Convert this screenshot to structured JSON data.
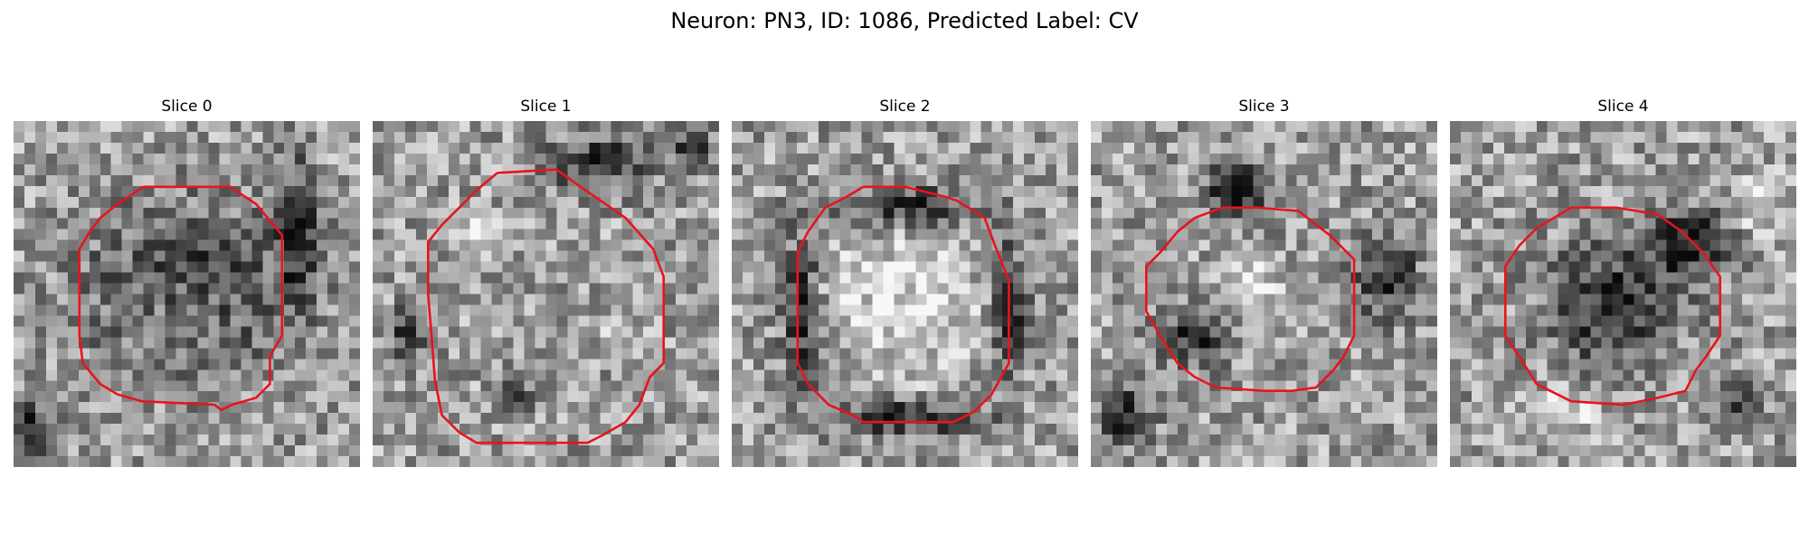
{
  "figure": {
    "title": "Neuron: PN3, ID: 1086, Predicted Label: CV"
  },
  "slices": [
    {
      "title": "Slice 0",
      "contour": [
        [
          0.375,
          0.19
        ],
        [
          0.625,
          0.19
        ],
        [
          0.7,
          0.24
        ],
        [
          0.775,
          0.33
        ],
        [
          0.775,
          0.62
        ],
        [
          0.74,
          0.68
        ],
        [
          0.74,
          0.76
        ],
        [
          0.7,
          0.8
        ],
        [
          0.63,
          0.82
        ],
        [
          0.6,
          0.835
        ],
        [
          0.58,
          0.82
        ],
        [
          0.37,
          0.81
        ],
        [
          0.3,
          0.79
        ],
        [
          0.25,
          0.76
        ],
        [
          0.2,
          0.7
        ],
        [
          0.19,
          0.62
        ],
        [
          0.19,
          0.37
        ],
        [
          0.22,
          0.32
        ],
        [
          0.25,
          0.28
        ],
        [
          0.3,
          0.24
        ],
        [
          0.375,
          0.19
        ]
      ],
      "dark": [
        [
          0.5,
          0.5,
          0.28,
          0.23
        ],
        [
          0.05,
          0.9,
          0.09,
          0.09
        ],
        [
          0.82,
          0.3,
          0.06,
          0.2
        ]
      ],
      "bright": [
        [
          0.48,
          0.55,
          0.17,
          0.14
        ]
      ]
    },
    {
      "title": "Slice 1",
      "contour": [
        [
          0.36,
          0.15
        ],
        [
          0.53,
          0.14
        ],
        [
          0.6,
          0.19
        ],
        [
          0.73,
          0.28
        ],
        [
          0.81,
          0.37
        ],
        [
          0.84,
          0.45
        ],
        [
          0.84,
          0.7
        ],
        [
          0.8,
          0.74
        ],
        [
          0.77,
          0.82
        ],
        [
          0.73,
          0.87
        ],
        [
          0.66,
          0.91
        ],
        [
          0.62,
          0.93
        ],
        [
          0.3,
          0.93
        ],
        [
          0.25,
          0.9
        ],
        [
          0.2,
          0.85
        ],
        [
          0.18,
          0.75
        ],
        [
          0.17,
          0.62
        ],
        [
          0.16,
          0.5
        ],
        [
          0.16,
          0.35
        ],
        [
          0.2,
          0.3
        ],
        [
          0.25,
          0.25
        ],
        [
          0.3,
          0.2
        ],
        [
          0.36,
          0.15
        ]
      ],
      "dark": [
        [
          0.65,
          0.12,
          0.14,
          0.08
        ],
        [
          0.92,
          0.08,
          0.06,
          0.06
        ],
        [
          0.1,
          0.62,
          0.05,
          0.07
        ],
        [
          0.42,
          0.8,
          0.05,
          0.05
        ]
      ],
      "bright": [
        [
          0.3,
          0.3,
          0.05,
          0.05
        ],
        [
          0.7,
          0.6,
          0.05,
          0.05
        ]
      ]
    },
    {
      "title": "Slice 2",
      "contour": [
        [
          0.38,
          0.19
        ],
        [
          0.5,
          0.19
        ],
        [
          0.62,
          0.22
        ],
        [
          0.65,
          0.23
        ],
        [
          0.73,
          0.28
        ],
        [
          0.76,
          0.36
        ],
        [
          0.8,
          0.46
        ],
        [
          0.8,
          0.7
        ],
        [
          0.75,
          0.79
        ],
        [
          0.7,
          0.84
        ],
        [
          0.64,
          0.87
        ],
        [
          0.6,
          0.87
        ],
        [
          0.38,
          0.87
        ],
        [
          0.35,
          0.85
        ],
        [
          0.28,
          0.82
        ],
        [
          0.22,
          0.76
        ],
        [
          0.19,
          0.7
        ],
        [
          0.19,
          0.38
        ],
        [
          0.22,
          0.32
        ],
        [
          0.27,
          0.25
        ],
        [
          0.33,
          0.22
        ],
        [
          0.38,
          0.19
        ]
      ],
      "dark": [
        [
          0.5,
          0.86,
          0.22,
          0.05
        ],
        [
          0.2,
          0.55,
          0.05,
          0.22
        ],
        [
          0.8,
          0.55,
          0.05,
          0.2
        ],
        [
          0.5,
          0.25,
          0.2,
          0.06
        ]
      ],
      "bright": [
        [
          0.5,
          0.52,
          0.2,
          0.2
        ]
      ]
    },
    {
      "title": "Slice 3",
      "contour": [
        [
          0.38,
          0.25
        ],
        [
          0.48,
          0.25
        ],
        [
          0.6,
          0.26
        ],
        [
          0.65,
          0.3
        ],
        [
          0.69,
          0.33
        ],
        [
          0.72,
          0.36
        ],
        [
          0.76,
          0.4
        ],
        [
          0.76,
          0.62
        ],
        [
          0.73,
          0.68
        ],
        [
          0.7,
          0.72
        ],
        [
          0.65,
          0.77
        ],
        [
          0.58,
          0.78
        ],
        [
          0.5,
          0.78
        ],
        [
          0.36,
          0.77
        ],
        [
          0.3,
          0.74
        ],
        [
          0.25,
          0.7
        ],
        [
          0.2,
          0.62
        ],
        [
          0.16,
          0.55
        ],
        [
          0.16,
          0.42
        ],
        [
          0.2,
          0.38
        ],
        [
          0.25,
          0.32
        ],
        [
          0.3,
          0.28
        ],
        [
          0.38,
          0.25
        ]
      ],
      "dark": [
        [
          0.3,
          0.62,
          0.1,
          0.09
        ],
        [
          0.42,
          0.2,
          0.1,
          0.08
        ],
        [
          0.85,
          0.45,
          0.09,
          0.12
        ],
        [
          0.1,
          0.85,
          0.08,
          0.08
        ]
      ],
      "bright": [
        [
          0.45,
          0.48,
          0.1,
          0.1
        ]
      ]
    },
    {
      "title": "Slice 4",
      "contour": [
        [
          0.35,
          0.25
        ],
        [
          0.48,
          0.25
        ],
        [
          0.6,
          0.27
        ],
        [
          0.67,
          0.32
        ],
        [
          0.73,
          0.38
        ],
        [
          0.78,
          0.45
        ],
        [
          0.78,
          0.62
        ],
        [
          0.74,
          0.68
        ],
        [
          0.71,
          0.72
        ],
        [
          0.68,
          0.78
        ],
        [
          0.6,
          0.8
        ],
        [
          0.5,
          0.82
        ],
        [
          0.35,
          0.81
        ],
        [
          0.25,
          0.76
        ],
        [
          0.2,
          0.68
        ],
        [
          0.16,
          0.62
        ],
        [
          0.16,
          0.42
        ],
        [
          0.2,
          0.36
        ],
        [
          0.25,
          0.31
        ],
        [
          0.3,
          0.28
        ],
        [
          0.35,
          0.25
        ]
      ],
      "dark": [
        [
          0.47,
          0.53,
          0.18,
          0.18
        ],
        [
          0.7,
          0.35,
          0.12,
          0.1
        ],
        [
          0.85,
          0.8,
          0.05,
          0.05
        ]
      ],
      "bright": [
        [
          0.3,
          0.85,
          0.12,
          0.07
        ],
        [
          0.9,
          0.25,
          0.06,
          0.1
        ]
      ]
    }
  ]
}
